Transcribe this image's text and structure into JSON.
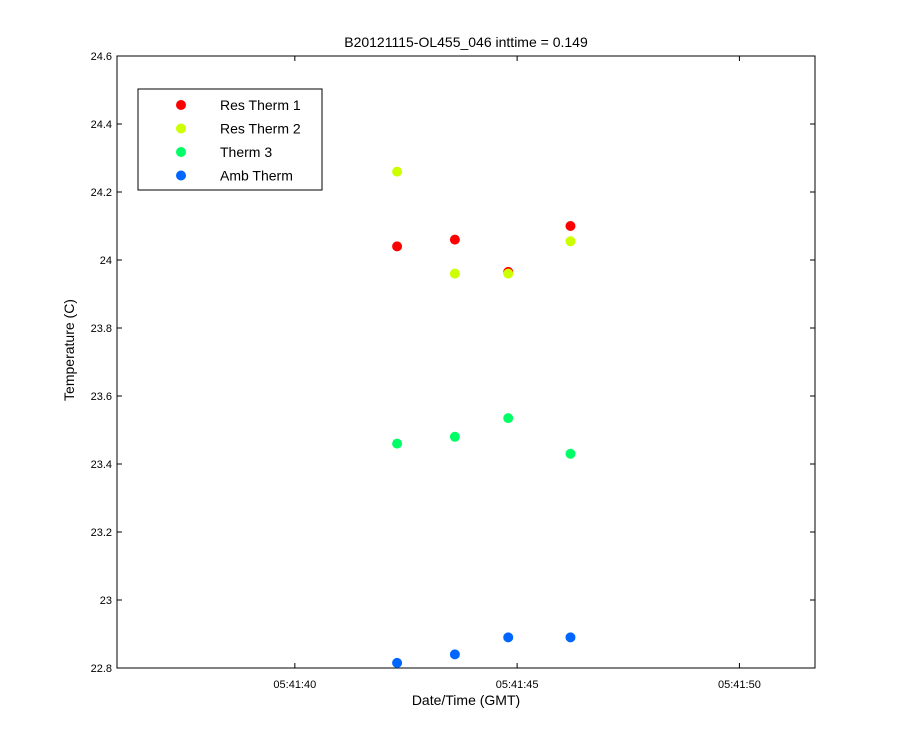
{
  "chart_data": {
    "type": "scatter",
    "title": "B20121115-OL455_046 inttime = 0.149",
    "xlabel": "Date/Time (GMT)",
    "ylabel": "Temperature (C)",
    "x_axis_kind": "time",
    "xlim": [
      "05:41:36",
      "05:41:51.7"
    ],
    "ylim": [
      22.8,
      24.6
    ],
    "x_ticks": [
      "05:41:40",
      "05:41:45",
      "05:41:50"
    ],
    "y_ticks": [
      22.8,
      23.0,
      23.2,
      23.4,
      23.6,
      23.8,
      24.0,
      24.2,
      24.4,
      24.6
    ],
    "y_tick_labels": [
      "22.8",
      "23",
      "23.2",
      "23.4",
      "23.6",
      "23.8",
      "24",
      "24.2",
      "24.4",
      "24.6"
    ],
    "grid": false,
    "legend_position": "top-left",
    "series": [
      {
        "name": "Res Therm 1",
        "color": "#ff0000",
        "x": [
          "05:41:42.3",
          "05:41:43.6",
          "05:41:44.8",
          "05:41:46.2"
        ],
        "y": [
          24.04,
          24.06,
          23.965,
          24.1
        ]
      },
      {
        "name": "Res Therm 2",
        "color": "#ccff00",
        "x": [
          "05:41:42.3",
          "05:41:43.6",
          "05:41:44.8",
          "05:41:46.2"
        ],
        "y": [
          24.26,
          23.96,
          23.96,
          24.055
        ]
      },
      {
        "name": "Therm 3",
        "color": "#00ff66",
        "x": [
          "05:41:42.3",
          "05:41:43.6",
          "05:41:44.8",
          "05:41:46.2"
        ],
        "y": [
          23.46,
          23.48,
          23.535,
          23.43
        ]
      },
      {
        "name": "Amb Therm",
        "color": "#0066ff",
        "x": [
          "05:41:42.3",
          "05:41:43.6",
          "05:41:44.8",
          "05:41:46.2"
        ],
        "y": [
          22.815,
          22.84,
          22.89,
          22.89
        ]
      }
    ]
  }
}
